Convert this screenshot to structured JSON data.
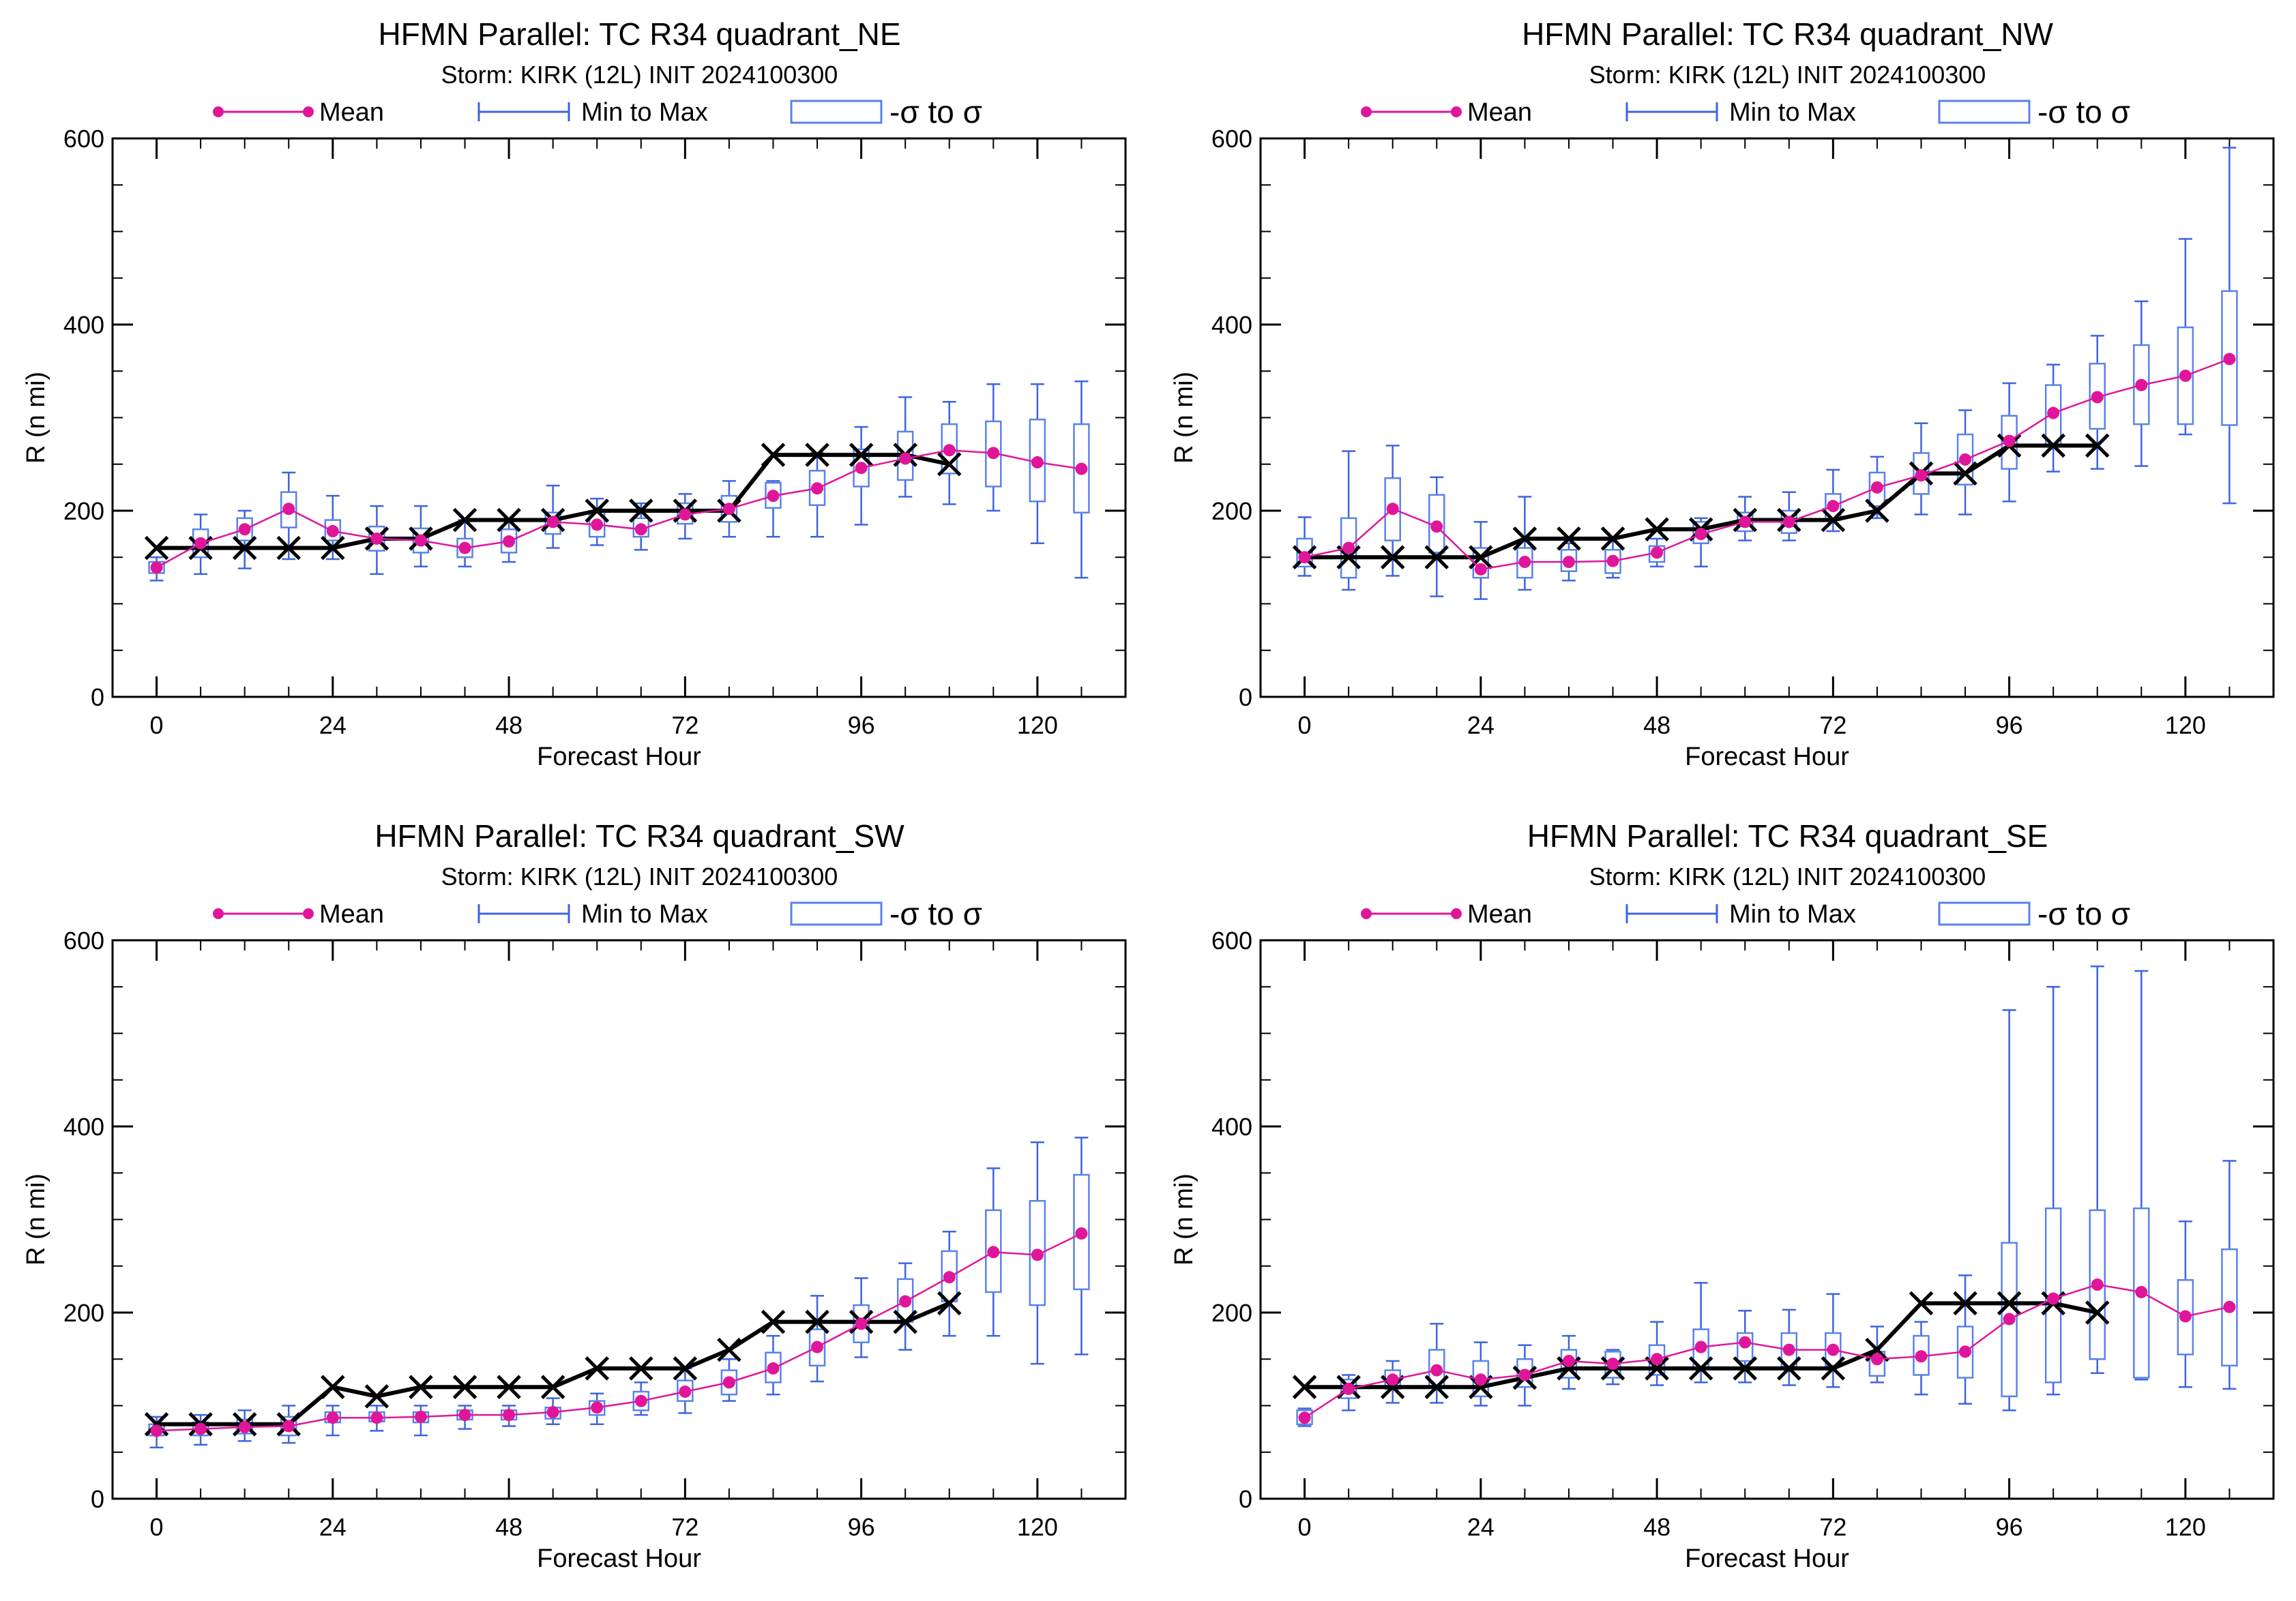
{
  "colors": {
    "mean": "#e0169a",
    "whisker": "#3d64e0",
    "box": "#5a82ea",
    "best_track": "#000000",
    "axes": "#000000",
    "background": "#ffffff"
  },
  "legend": {
    "mean_label": "Mean",
    "minmax_label": "Min to Max",
    "sigma_label": "-σ to σ"
  },
  "chart_data": [
    {
      "type": "box",
      "title": "HFMN Parallel: TC  R34 quadrant_NE",
      "subtitle": "Storm: KIRK (12L) INIT 2024100300",
      "xlabel": "Forecast Hour",
      "ylabel": "R (n mi)",
      "xlim": [
        -6,
        132
      ],
      "ylim": [
        0,
        600
      ],
      "xticks": [
        0,
        24,
        48,
        72,
        96,
        120
      ],
      "yticks": [
        0,
        200,
        400,
        600
      ],
      "hours": [
        0,
        6,
        12,
        18,
        24,
        30,
        36,
        42,
        48,
        54,
        60,
        66,
        72,
        78,
        84,
        90,
        96,
        102,
        108,
        114,
        120,
        126
      ],
      "mean": [
        139,
        165,
        180,
        202,
        178,
        170,
        168,
        160,
        167,
        188,
        185,
        180,
        196,
        202,
        216,
        224,
        246,
        256,
        265,
        262,
        252,
        245
      ],
      "box_low": [
        133,
        150,
        168,
        182,
        168,
        157,
        155,
        150,
        155,
        175,
        172,
        172,
        186,
        188,
        203,
        206,
        226,
        233,
        240,
        226,
        210,
        198
      ],
      "box_high": [
        145,
        180,
        192,
        220,
        190,
        183,
        181,
        170,
        180,
        198,
        200,
        192,
        208,
        216,
        230,
        243,
        266,
        285,
        293,
        296,
        298,
        293
      ],
      "whisker_min": [
        125,
        132,
        138,
        148,
        148,
        132,
        140,
        140,
        145,
        160,
        163,
        158,
        170,
        172,
        172,
        172,
        185,
        215,
        207,
        200,
        165,
        128
      ],
      "whisker_max": [
        150,
        196,
        200,
        241,
        216,
        205,
        205,
        190,
        190,
        227,
        213,
        208,
        218,
        232,
        232,
        262,
        290,
        322,
        317,
        336,
        336,
        339
      ],
      "best_track_hours": [
        0,
        6,
        12,
        18,
        24,
        30,
        36,
        42,
        48,
        54,
        60,
        66,
        72,
        78,
        84,
        90,
        96,
        102,
        108
      ],
      "best_track": [
        160,
        160,
        160,
        160,
        160,
        170,
        170,
        190,
        190,
        190,
        200,
        200,
        200,
        200,
        260,
        260,
        260,
        260,
        250
      ]
    },
    {
      "type": "box",
      "title": "HFMN Parallel: TC  R34 quadrant_NW",
      "subtitle": "Storm: KIRK (12L) INIT 2024100300",
      "xlabel": "Forecast Hour",
      "ylabel": "R (n mi)",
      "xlim": [
        -6,
        132
      ],
      "ylim": [
        0,
        600
      ],
      "xticks": [
        0,
        24,
        48,
        72,
        96,
        120
      ],
      "yticks": [
        0,
        200,
        400,
        600
      ],
      "hours": [
        0,
        6,
        12,
        18,
        24,
        30,
        36,
        42,
        48,
        54,
        60,
        66,
        72,
        78,
        84,
        90,
        96,
        102,
        108,
        114,
        120,
        126
      ],
      "mean": [
        150,
        160,
        202,
        183,
        137,
        145,
        145,
        146,
        155,
        175,
        188,
        188,
        205,
        225,
        238,
        255,
        275,
        305,
        322,
        335,
        345,
        363
      ],
      "box_low": [
        140,
        128,
        168,
        155,
        128,
        128,
        135,
        133,
        145,
        165,
        178,
        176,
        190,
        205,
        218,
        228,
        245,
        270,
        288,
        293,
        293,
        292
      ],
      "box_high": [
        170,
        192,
        235,
        217,
        160,
        160,
        158,
        158,
        162,
        188,
        198,
        200,
        218,
        241,
        262,
        282,
        302,
        335,
        358,
        378,
        397,
        436
      ],
      "whisker_min": [
        130,
        115,
        130,
        108,
        105,
        115,
        125,
        128,
        140,
        140,
        168,
        168,
        178,
        192,
        196,
        196,
        210,
        242,
        245,
        248,
        282,
        208
      ],
      "whisker_max": [
        193,
        264,
        270,
        236,
        188,
        215,
        165,
        170,
        170,
        192,
        215,
        220,
        244,
        258,
        294,
        308,
        337,
        357,
        388,
        425,
        492,
        590
      ],
      "best_track_hours": [
        0,
        6,
        12,
        18,
        24,
        30,
        36,
        42,
        48,
        54,
        60,
        66,
        72,
        78,
        84,
        90,
        96,
        102,
        108
      ],
      "best_track": [
        150,
        150,
        150,
        150,
        150,
        170,
        170,
        170,
        180,
        180,
        190,
        190,
        190,
        200,
        240,
        240,
        270,
        270,
        270
      ]
    },
    {
      "type": "box",
      "title": "HFMN Parallel: TC  R34 quadrant_SW",
      "subtitle": "Storm: KIRK (12L) INIT 2024100300",
      "xlabel": "Forecast Hour",
      "ylabel": "R (n mi)",
      "xlim": [
        -6,
        132
      ],
      "ylim": [
        0,
        600
      ],
      "xticks": [
        0,
        24,
        48,
        72,
        96,
        120
      ],
      "yticks": [
        0,
        200,
        400,
        600
      ],
      "hours": [
        0,
        6,
        12,
        18,
        24,
        30,
        36,
        42,
        48,
        54,
        60,
        66,
        72,
        78,
        84,
        90,
        96,
        102,
        108,
        114,
        120,
        126
      ],
      "mean": [
        73,
        75,
        77,
        78,
        87,
        87,
        88,
        90,
        90,
        93,
        98,
        105,
        115,
        125,
        140,
        163,
        188,
        212,
        238,
        265,
        262,
        285
      ],
      "box_low": [
        68,
        68,
        70,
        68,
        82,
        83,
        82,
        85,
        85,
        86,
        90,
        95,
        105,
        112,
        125,
        143,
        168,
        190,
        212,
        222,
        208,
        225
      ],
      "box_high": [
        80,
        82,
        85,
        88,
        93,
        93,
        93,
        95,
        95,
        98,
        105,
        115,
        127,
        138,
        157,
        182,
        208,
        236,
        266,
        310,
        320,
        348
      ],
      "whisker_min": [
        55,
        58,
        62,
        60,
        68,
        73,
        68,
        75,
        78,
        80,
        80,
        90,
        92,
        105,
        112,
        126,
        152,
        160,
        175,
        175,
        145,
        155
      ],
      "whisker_max": [
        88,
        90,
        95,
        100,
        100,
        100,
        100,
        100,
        100,
        108,
        113,
        125,
        140,
        150,
        175,
        218,
        237,
        253,
        287,
        355,
        383,
        388
      ],
      "best_track_hours": [
        0,
        6,
        12,
        18,
        24,
        30,
        36,
        42,
        48,
        54,
        60,
        66,
        72,
        78,
        84,
        90,
        96,
        102,
        108
      ],
      "best_track": [
        80,
        80,
        80,
        80,
        120,
        110,
        120,
        120,
        120,
        120,
        140,
        140,
        140,
        160,
        190,
        190,
        190,
        190,
        210
      ]
    },
    {
      "type": "box",
      "title": "HFMN Parallel: TC  R34 quadrant_SE",
      "subtitle": "Storm: KIRK (12L) INIT 2024100300",
      "xlabel": "Forecast Hour",
      "ylabel": "R (n mi)",
      "xlim": [
        -6,
        132
      ],
      "ylim": [
        0,
        600
      ],
      "xticks": [
        0,
        24,
        48,
        72,
        96,
        120
      ],
      "yticks": [
        0,
        200,
        400,
        600
      ],
      "hours": [
        0,
        6,
        12,
        18,
        24,
        30,
        36,
        42,
        48,
        54,
        60,
        66,
        72,
        78,
        84,
        90,
        96,
        102,
        108,
        114,
        120,
        126
      ],
      "mean": [
        87,
        118,
        128,
        138,
        128,
        133,
        148,
        145,
        150,
        163,
        168,
        160,
        160,
        150,
        153,
        158,
        193,
        215,
        230,
        222,
        196,
        206
      ],
      "box_low": [
        80,
        108,
        118,
        120,
        110,
        120,
        130,
        130,
        133,
        140,
        148,
        142,
        143,
        132,
        133,
        130,
        110,
        125,
        150,
        130,
        155,
        143
      ],
      "box_high": [
        95,
        128,
        138,
        160,
        148,
        150,
        160,
        158,
        165,
        182,
        178,
        178,
        178,
        158,
        175,
        185,
        275,
        312,
        310,
        312,
        235,
        268
      ],
      "whisker_min": [
        78,
        95,
        103,
        103,
        100,
        100,
        118,
        123,
        122,
        125,
        125,
        122,
        120,
        125,
        112,
        102,
        95,
        112,
        135,
        128,
        120,
        118
      ],
      "whisker_max": [
        97,
        133,
        148,
        188,
        168,
        165,
        175,
        160,
        190,
        232,
        202,
        203,
        220,
        185,
        190,
        240,
        525,
        550,
        572,
        567,
        298,
        363
      ],
      "best_track_hours": [
        0,
        6,
        12,
        18,
        24,
        30,
        36,
        42,
        48,
        54,
        60,
        66,
        72,
        78,
        84,
        90,
        96,
        102,
        108
      ],
      "best_track": [
        120,
        120,
        120,
        120,
        120,
        130,
        140,
        140,
        140,
        140,
        140,
        140,
        140,
        160,
        210,
        210,
        210,
        210,
        200
      ]
    }
  ]
}
